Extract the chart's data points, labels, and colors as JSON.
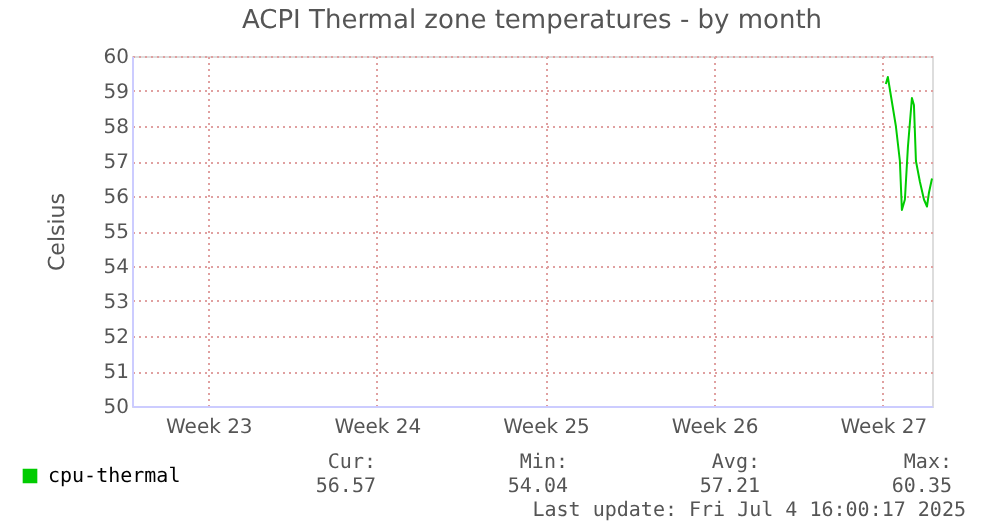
{
  "chart_data": {
    "type": "line",
    "title": "ACPI Thermal zone temperatures - by month",
    "ylabel": "Celsius",
    "x": [
      "2025-07-02T18:00",
      "2025-07-02T20:00",
      "2025-07-03T00:00",
      "2025-07-03T04:00",
      "2025-07-03T08:00",
      "2025-07-03T10:00",
      "2025-07-03T13:00",
      "2025-07-03T16:00",
      "2025-07-03T20:00",
      "2025-07-03T22:00",
      "2025-07-04T00:00",
      "2025-07-04T04:00",
      "2025-07-04T08:00",
      "2025-07-04T11:00",
      "2025-07-04T13:00",
      "2025-07-04T16:00"
    ],
    "series": [
      {
        "name": "cpu-thermal",
        "color": "#00cc00",
        "values": [
          59.2,
          59.4,
          58.7,
          58.0,
          57.0,
          55.6,
          55.9,
          57.4,
          58.8,
          58.6,
          57.0,
          56.4,
          55.9,
          55.7,
          56.1,
          56.5
        ]
      }
    ],
    "xlim": [
      "2025-06-01T11:00",
      "2025-07-04T16:00"
    ],
    "xticks": [
      {
        "value": "2025-06-04T15:00",
        "label": "Week 23"
      },
      {
        "value": "2025-06-11T15:00",
        "label": "Week 24"
      },
      {
        "value": "2025-06-18T15:00",
        "label": "Week 25"
      },
      {
        "value": "2025-06-25T15:00",
        "label": "Week 26"
      },
      {
        "value": "2025-07-02T15:00",
        "label": "Week 27"
      }
    ],
    "ylim": [
      50,
      60
    ],
    "yticks": [
      50,
      51,
      52,
      53,
      54,
      55,
      56,
      57,
      58,
      59,
      60
    ],
    "grid": true,
    "legend": "bottom left",
    "marker": "none",
    "line_style": "solid",
    "annotations": [
      "Cur:",
      "56.57",
      "Min:",
      "54.04",
      "Avg:",
      "57.21",
      "Max:",
      "60.35",
      "Last update: Fri Jul  4 16:00:17 2025"
    ]
  }
}
